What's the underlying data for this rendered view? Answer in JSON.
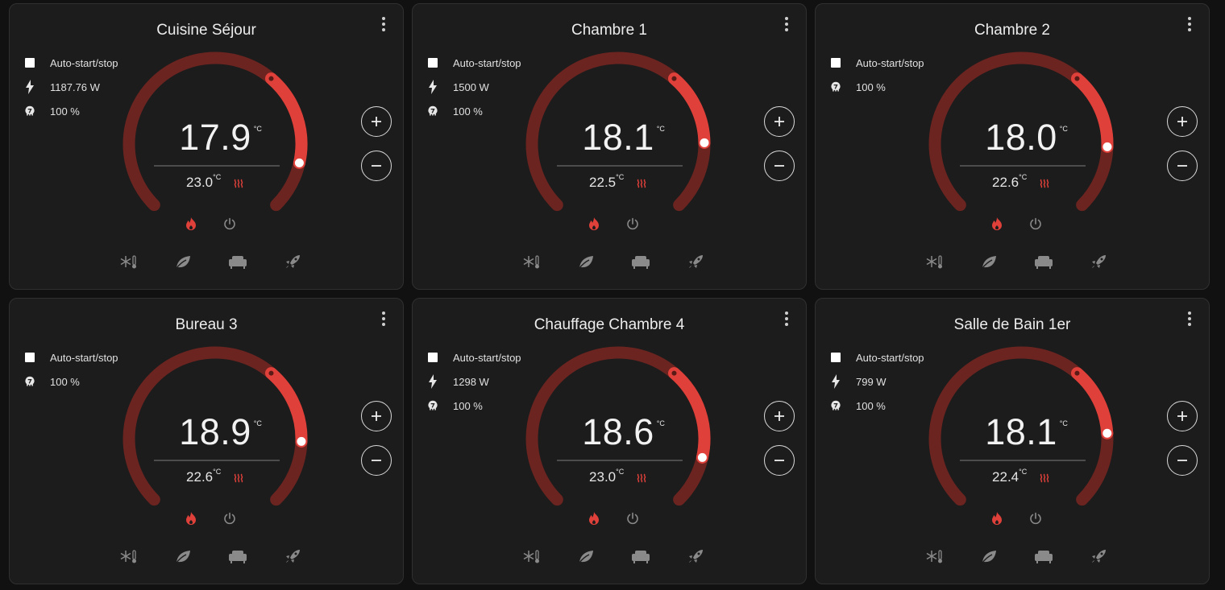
{
  "colors": {
    "accent": "#e0403a",
    "track": "#6b2420",
    "inactive": "#8a8a8a",
    "card": "#1c1c1c"
  },
  "icons": {
    "auto": "checkbox",
    "power": "lightning-bolt-icon",
    "battery": "battery-percent-icon",
    "heat": "heat-waves-icon",
    "modes": [
      "flame-icon",
      "power-icon"
    ],
    "presets": [
      "frost-protection-icon",
      "eco-leaf-icon",
      "comfort-sofa-icon",
      "boost-rocket-icon"
    ],
    "plus": "plus-icon",
    "minus": "minus-icon"
  },
  "cards": [
    {
      "title": "Cuisine Séjour",
      "auto_label": "Auto-start/stop",
      "power": "1187.76 W",
      "battery": "100 %",
      "current": "17.9",
      "unit": "°C",
      "target": "23.0",
      "target_unit": "°C",
      "level": 0.88
    },
    {
      "title": "Chambre 1",
      "auto_label": "Auto-start/stop",
      "power": "1500 W",
      "battery": "100 %",
      "current": "18.1",
      "unit": "°C",
      "target": "22.5",
      "target_unit": "°C",
      "level": 0.83
    },
    {
      "title": "Chambre 2",
      "auto_label": "Auto-start/stop",
      "battery": "100 %",
      "current": "18.0",
      "unit": "°C",
      "target": "22.6",
      "target_unit": "°C",
      "level": 0.84
    },
    {
      "title": "Bureau 3",
      "auto_label": "Auto-start/stop",
      "battery": "100 %",
      "current": "18.9",
      "unit": "°C",
      "target": "22.6",
      "target_unit": "°C",
      "level": 0.84
    },
    {
      "title": "Chauffage Chambre 4",
      "auto_label": "Auto-start/stop",
      "power": "1298 W",
      "battery": "100 %",
      "current": "18.6",
      "unit": "°C",
      "target": "23.0",
      "target_unit": "°C",
      "level": 0.88
    },
    {
      "title": "Salle de Bain 1er",
      "auto_label": "Auto-start/stop",
      "power": "799 W",
      "battery": "100 %",
      "current": "18.1",
      "unit": "°C",
      "target": "22.4",
      "target_unit": "°C",
      "level": 0.82
    }
  ]
}
